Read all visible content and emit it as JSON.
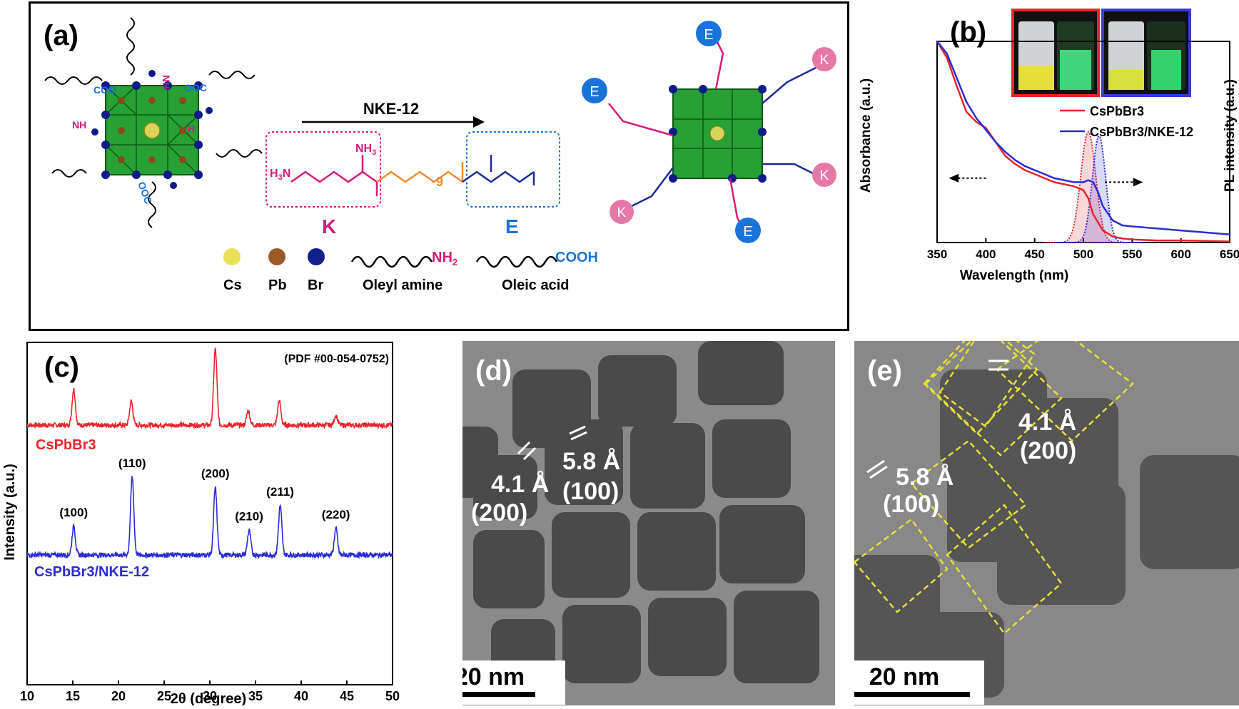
{
  "panel_a": {
    "label": "(a)",
    "arrow_label": "NKE-12",
    "segment_k": "K",
    "segment_e": "E",
    "repeat_n": "9",
    "mini_h3n": "H",
    "legend": {
      "cs": "Cs",
      "pb": "Pb",
      "br": "Br",
      "oleyl_amine": "Oleyl amine",
      "oleic_acid": "Oleic acid",
      "nh2": "NH",
      "cooh": "COOH"
    },
    "ligand_labels": {
      "coo": "COO",
      "nh2": "NH",
      "h2n": "H",
      "ooc": "OOC"
    },
    "sphere_k": "K",
    "sphere_e": "E"
  },
  "panel_b": {
    "label": "(b)",
    "ylabel_left": "Absorbance (a.u.)",
    "ylabel_right": "PL intensity (a.u.)",
    "xlabel": "Wavelength (nm)",
    "legend": [
      "CsPbBr3",
      "CsPbBr3/NKE-12"
    ],
    "colors": {
      "s1": "#e8242a",
      "s2": "#2b2bd6"
    }
  },
  "panel_c": {
    "label": "(c)",
    "pdf": "(PDF #00-054-0752)",
    "ylabel": "Intensity (a.u.)",
    "xlabel": "2θ (degree)",
    "series_labels": [
      "CsPbBr3",
      "CsPbBr3/NKE-12"
    ],
    "peak_labels": [
      "(100)",
      "(110)",
      "(200)",
      "(210)",
      "(211)",
      "(220)"
    ]
  },
  "panel_d": {
    "label": "(d)",
    "d1": "4.1 Å",
    "h1": "(200)",
    "d2": "5.8 Å",
    "h2": "(100)",
    "scale": "20 nm"
  },
  "panel_e": {
    "label": "(e)",
    "d1": "4.1 Å",
    "h1": "(200)",
    "d2": "5.8 Å",
    "h2": "(100)",
    "scale": "20 nm"
  },
  "chart_data": [
    {
      "type": "line",
      "id": "b",
      "xlabel": "Wavelength (nm)",
      "ylabel": "Absorbance (a.u.)",
      "y2label": "PL intensity (a.u.)",
      "xlim": [
        350,
        650
      ],
      "xticks": [
        350,
        400,
        450,
        500,
        550,
        600,
        650
      ],
      "series": [
        {
          "name": "CsPbBr3",
          "kind": "absorbance",
          "x": [
            350,
            360,
            370,
            380,
            390,
            400,
            410,
            420,
            430,
            440,
            450,
            460,
            470,
            480,
            490,
            500,
            505,
            510,
            520,
            530,
            540,
            550,
            575,
            600,
            625,
            650
          ],
          "y": [
            1.0,
            0.92,
            0.78,
            0.65,
            0.6,
            0.57,
            0.5,
            0.43,
            0.39,
            0.36,
            0.34,
            0.32,
            0.3,
            0.29,
            0.28,
            0.26,
            0.22,
            0.14,
            0.06,
            0.03,
            0.02,
            0.015,
            0.01,
            0.01,
            0.008,
            0.005
          ]
        },
        {
          "name": "CsPbBr3/NKE-12",
          "kind": "absorbance",
          "x": [
            350,
            360,
            370,
            380,
            390,
            400,
            410,
            420,
            430,
            440,
            450,
            460,
            470,
            480,
            490,
            500,
            505,
            510,
            515,
            520,
            530,
            540,
            550,
            575,
            600,
            625,
            650
          ],
          "y": [
            1.0,
            0.94,
            0.82,
            0.7,
            0.62,
            0.56,
            0.5,
            0.45,
            0.41,
            0.38,
            0.36,
            0.34,
            0.32,
            0.31,
            0.3,
            0.3,
            0.31,
            0.3,
            0.25,
            0.18,
            0.11,
            0.085,
            0.08,
            0.07,
            0.06,
            0.05,
            0.04
          ]
        },
        {
          "name": "CsPbBr3",
          "kind": "PL",
          "peak": 505,
          "fwhm": 18,
          "height": 0.55
        },
        {
          "name": "CsPbBr3/NKE-12",
          "kind": "PL",
          "peak": 516,
          "fwhm": 16,
          "height": 0.53
        }
      ]
    },
    {
      "type": "line",
      "id": "c",
      "xlabel": "2θ (degree)",
      "ylabel": "Intensity (a.u.)",
      "xlim": [
        10,
        50
      ],
      "xticks": [
        10,
        15,
        20,
        25,
        30,
        35,
        40,
        45,
        50
      ],
      "series": [
        {
          "name": "CsPbBr3",
          "peaks_x": [
            15.1,
            21.4,
            30.6,
            34.2,
            37.6,
            43.8
          ],
          "peaks_h": [
            0.45,
            0.3,
            0.95,
            0.18,
            0.3,
            0.12
          ]
        },
        {
          "name": "CsPbBr3/NKE-12",
          "peaks_x": [
            15.1,
            21.5,
            30.6,
            34.3,
            37.7,
            43.8
          ],
          "peaks_h": [
            0.35,
            0.95,
            0.82,
            0.3,
            0.6,
            0.32
          ]
        }
      ],
      "peak_labels": [
        {
          "x": 15.1,
          "label": "(100)"
        },
        {
          "x": 21.5,
          "label": "(110)"
        },
        {
          "x": 30.6,
          "label": "(200)"
        },
        {
          "x": 34.3,
          "label": "(210)"
        },
        {
          "x": 37.7,
          "label": "(211)"
        },
        {
          "x": 43.8,
          "label": "(220)"
        }
      ]
    }
  ]
}
